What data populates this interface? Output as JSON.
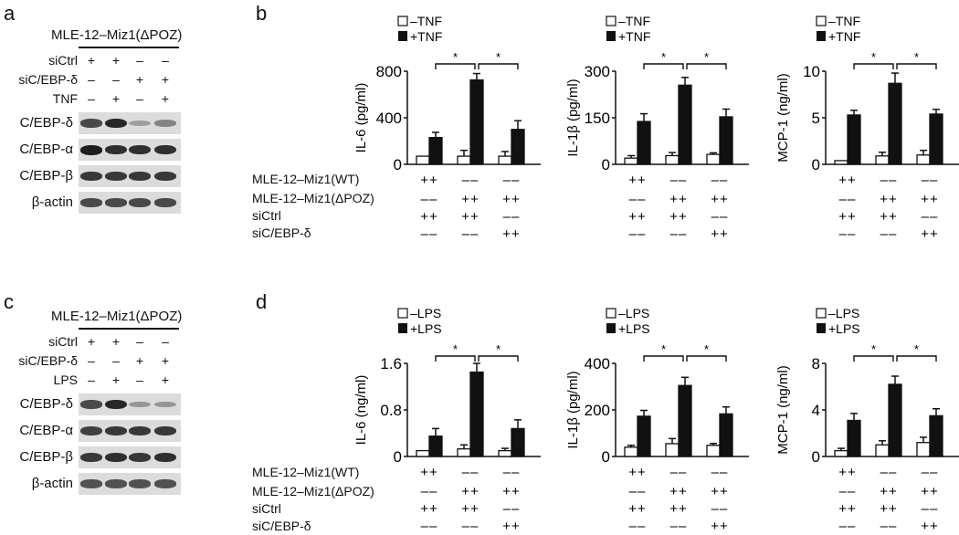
{
  "panels": {
    "a": {
      "letter": "a"
    },
    "b": {
      "letter": "b"
    },
    "c": {
      "letter": "c"
    },
    "d": {
      "letter": "d"
    }
  },
  "blots": [
    {
      "title": "MLE-12–Miz1(ΔPOZ)",
      "conditions": [
        {
          "label": "siCtrl",
          "signs": [
            "+",
            "+",
            "–",
            "–"
          ]
        },
        {
          "label": "siC/EBP-δ",
          "signs": [
            "–",
            "–",
            "+",
            "+"
          ]
        },
        {
          "label": "TNF",
          "signs": [
            "–",
            "+",
            "–",
            "+"
          ]
        }
      ],
      "bands": [
        {
          "label": "C/EBP-δ",
          "intensity": [
            0.75,
            0.95,
            0.25,
            0.4
          ]
        },
        {
          "label": "C/EBP-α",
          "intensity": [
            1.0,
            0.9,
            0.9,
            0.9
          ]
        },
        {
          "label": "C/EBP-β",
          "intensity": [
            0.85,
            0.85,
            0.85,
            0.85
          ]
        },
        {
          "label": "β-actin",
          "intensity": [
            0.75,
            0.75,
            0.75,
            0.75
          ]
        }
      ]
    },
    {
      "title": "MLE-12–Miz1(ΔPOZ)",
      "conditions": [
        {
          "label": "siCtrl",
          "signs": [
            "+",
            "+",
            "–",
            "–"
          ]
        },
        {
          "label": "siC/EBP-δ",
          "signs": [
            "–",
            "–",
            "+",
            "+"
          ]
        },
        {
          "label": "LPS",
          "signs": [
            "–",
            "+",
            "–",
            "+"
          ]
        }
      ],
      "bands": [
        {
          "label": "C/EBP-δ",
          "intensity": [
            0.75,
            0.95,
            0.3,
            0.3
          ]
        },
        {
          "label": "C/EBP-α",
          "intensity": [
            0.8,
            0.85,
            0.85,
            0.85
          ]
        },
        {
          "label": "C/EBP-β",
          "intensity": [
            0.85,
            0.9,
            0.85,
            0.9
          ]
        },
        {
          "label": "β-actin",
          "intensity": [
            0.7,
            0.7,
            0.7,
            0.7
          ]
        }
      ]
    }
  ],
  "condition_table": {
    "rows": [
      "MLE-12–Miz1(WT)",
      "MLE-12–Miz1(ΔPOZ)",
      "siCtrl",
      "siC/EBP-δ"
    ],
    "signs": [
      [
        "++",
        "––",
        "––"
      ],
      [
        "––",
        "++",
        "++"
      ],
      [
        "++",
        "++",
        "––"
      ],
      [
        "––",
        "––",
        "++"
      ]
    ]
  },
  "chart_data": [
    {
      "panel": "b",
      "type": "bar",
      "title": "",
      "xlabel": "",
      "ylabel": "IL-6 (pg/ml)",
      "ylim": [
        0,
        800
      ],
      "yticks": [
        0,
        400,
        800
      ],
      "categories": [
        "WT + siCtrl",
        "ΔPOZ + siCtrl",
        "ΔPOZ + siC/EBP-δ"
      ],
      "legend": [
        "–TNF",
        "+TNF"
      ],
      "series": [
        {
          "name": "–TNF",
          "values": [
            70,
            70,
            70
          ],
          "errors": [
            0,
            50,
            40
          ]
        },
        {
          "name": "+TNF",
          "values": [
            230,
            725,
            300
          ],
          "errors": [
            45,
            55,
            75
          ]
        }
      ],
      "significance": [
        "*",
        "*"
      ]
    },
    {
      "panel": "b",
      "type": "bar",
      "title": "",
      "xlabel": "",
      "ylabel": "IL-1β (pg/ml)",
      "ylim": [
        0,
        300
      ],
      "yticks": [
        0,
        150,
        300
      ],
      "categories": [
        "WT + siCtrl",
        "ΔPOZ + siCtrl",
        "ΔPOZ + siC/EBP-δ"
      ],
      "legend": [
        "–TNF",
        "+TNF"
      ],
      "series": [
        {
          "name": "–TNF",
          "values": [
            20,
            28,
            32
          ],
          "errors": [
            8,
            10,
            5
          ]
        },
        {
          "name": "+TNF",
          "values": [
            138,
            255,
            153
          ],
          "errors": [
            25,
            25,
            25
          ]
        }
      ],
      "significance": [
        "*",
        "*"
      ]
    },
    {
      "panel": "b",
      "type": "bar",
      "title": "",
      "xlabel": "",
      "ylabel": "MCP-1 (ng/ml)",
      "ylim": [
        0,
        10
      ],
      "yticks": [
        0,
        5,
        10
      ],
      "categories": [
        "WT + siCtrl",
        "ΔPOZ + siCtrl",
        "ΔPOZ + siC/EBP-δ"
      ],
      "legend": [
        "–TNF",
        "+TNF"
      ],
      "series": [
        {
          "name": "–TNF",
          "values": [
            0.4,
            0.9,
            1.0
          ],
          "errors": [
            0,
            0.4,
            0.5
          ]
        },
        {
          "name": "+TNF",
          "values": [
            5.3,
            8.7,
            5.4
          ],
          "errors": [
            0.5,
            1.1,
            0.5
          ]
        }
      ],
      "significance": [
        "*",
        "*"
      ]
    },
    {
      "panel": "d",
      "type": "bar",
      "title": "",
      "xlabel": "",
      "ylabel": "IL-6 (ng/ml)",
      "ylim": [
        0,
        1.6
      ],
      "yticks": [
        0,
        0.8,
        1.6
      ],
      "categories": [
        "WT + siCtrl",
        "ΔPOZ + siCtrl",
        "ΔPOZ + siC/EBP-δ"
      ],
      "legend": [
        "–LPS",
        "+LPS"
      ],
      "series": [
        {
          "name": "–LPS",
          "values": [
            0.1,
            0.13,
            0.1
          ],
          "errors": [
            0,
            0.07,
            0.04
          ]
        },
        {
          "name": "+LPS",
          "values": [
            0.35,
            1.45,
            0.48
          ],
          "errors": [
            0.13,
            0.15,
            0.15
          ]
        }
      ],
      "significance": [
        "*",
        "*"
      ]
    },
    {
      "panel": "d",
      "type": "bar",
      "title": "",
      "xlabel": "",
      "ylabel": "IL-1β (pg/ml)",
      "ylim": [
        0,
        400
      ],
      "yticks": [
        0,
        200,
        400
      ],
      "categories": [
        "WT + siCtrl",
        "ΔPOZ + siCtrl",
        "ΔPOZ + siC/EBP-δ"
      ],
      "legend": [
        "–LPS",
        "+LPS"
      ],
      "series": [
        {
          "name": "–LPS",
          "values": [
            40,
            55,
            48
          ],
          "errors": [
            8,
            22,
            8
          ]
        },
        {
          "name": "+LPS",
          "values": [
            173,
            305,
            183
          ],
          "errors": [
            25,
            35,
            30
          ]
        }
      ],
      "significance": [
        "*",
        "*"
      ]
    },
    {
      "panel": "d",
      "type": "bar",
      "title": "",
      "xlabel": "",
      "ylabel": "MCP-1 (ng/ml)",
      "ylim": [
        0,
        8
      ],
      "yticks": [
        0,
        4,
        8
      ],
      "categories": [
        "WT + siCtrl",
        "ΔPOZ + siCtrl",
        "ΔPOZ + siC/EBP-δ"
      ],
      "legend": [
        "–LPS",
        "+LPS"
      ],
      "series": [
        {
          "name": "–LPS",
          "values": [
            0.5,
            1.0,
            1.2
          ],
          "errors": [
            0.2,
            0.35,
            0.45
          ]
        },
        {
          "name": "+LPS",
          "values": [
            3.1,
            6.2,
            3.5
          ],
          "errors": [
            0.6,
            0.7,
            0.6
          ]
        }
      ],
      "significance": [
        "*",
        "*"
      ]
    }
  ]
}
